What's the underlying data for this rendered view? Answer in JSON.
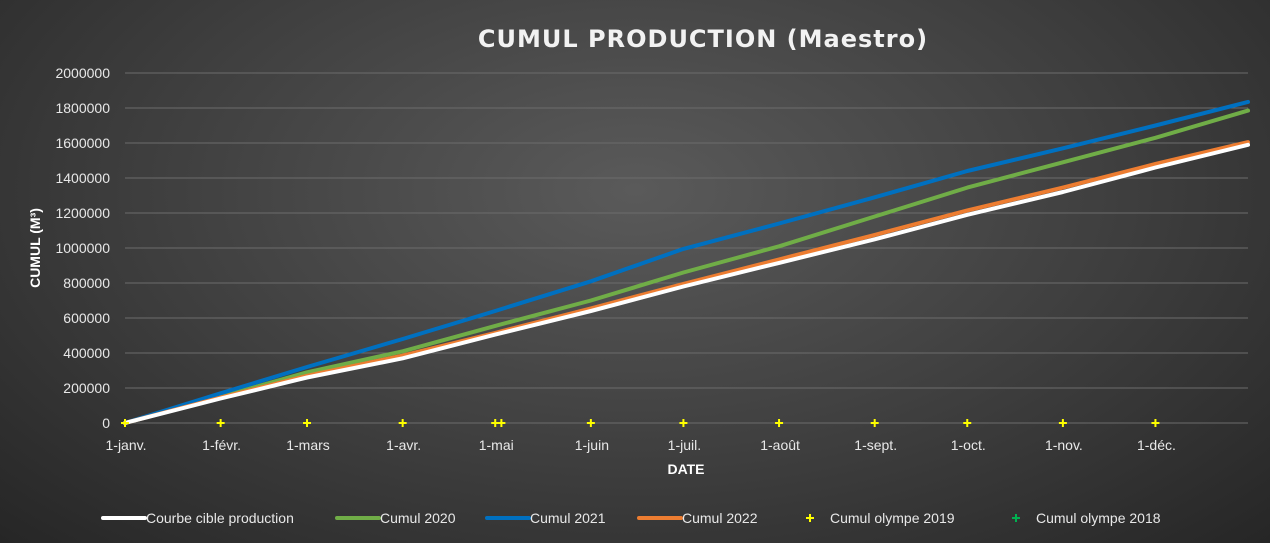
{
  "chart_data": {
    "type": "line",
    "title": "CUMUL PRODUCTION (Maestro)",
    "xlabel": "DATE",
    "ylabel": "CUMUL (M³)",
    "ylim": [
      0,
      2000000
    ],
    "yticks": [
      0,
      200000,
      400000,
      600000,
      800000,
      1000000,
      1200000,
      1400000,
      1600000,
      1800000,
      2000000
    ],
    "xlim": [
      "1-janv.",
      "31-déc."
    ],
    "xticks": [
      {
        "label": "1-janv.",
        "day": 0
      },
      {
        "label": "1-févr.",
        "day": 31
      },
      {
        "label": "1-mars",
        "day": 59
      },
      {
        "label": "1-avr.",
        "day": 90
      },
      {
        "label": "1-mai",
        "day": 120
      },
      {
        "label": "1-juin",
        "day": 151
      },
      {
        "label": "1-juil.",
        "day": 181
      },
      {
        "label": "1-août",
        "day": 212
      },
      {
        "label": "1-sept.",
        "day": 243
      },
      {
        "label": "1-oct.",
        "day": 273
      },
      {
        "label": "1-nov.",
        "day": 304
      },
      {
        "label": "1-déc.",
        "day": 334
      }
    ],
    "grid": true,
    "legend_position": "bottom",
    "series": [
      {
        "name": "Courbe cible production",
        "color": "#ffffff",
        "style": "line",
        "points": [
          [
            0,
            0
          ],
          [
            31,
            140000
          ],
          [
            59,
            260000
          ],
          [
            90,
            370000
          ],
          [
            120,
            505000
          ],
          [
            151,
            640000
          ],
          [
            181,
            780000
          ],
          [
            212,
            915000
          ],
          [
            243,
            1050000
          ],
          [
            273,
            1190000
          ],
          [
            304,
            1320000
          ],
          [
            334,
            1460000
          ],
          [
            364,
            1590000
          ]
        ]
      },
      {
        "name": "Cumul 2020",
        "color": "#70ad47",
        "style": "line",
        "points": [
          [
            0,
            0
          ],
          [
            31,
            150000
          ],
          [
            59,
            290000
          ],
          [
            90,
            410000
          ],
          [
            120,
            555000
          ],
          [
            151,
            700000
          ],
          [
            181,
            860000
          ],
          [
            212,
            1010000
          ],
          [
            243,
            1180000
          ],
          [
            273,
            1345000
          ],
          [
            304,
            1490000
          ],
          [
            334,
            1630000
          ],
          [
            364,
            1785000
          ]
        ]
      },
      {
        "name": "Cumul 2021",
        "color": "#0070c0",
        "style": "line",
        "points": [
          [
            0,
            0
          ],
          [
            31,
            170000
          ],
          [
            59,
            320000
          ],
          [
            90,
            480000
          ],
          [
            120,
            640000
          ],
          [
            151,
            810000
          ],
          [
            181,
            995000
          ],
          [
            212,
            1140000
          ],
          [
            243,
            1290000
          ],
          [
            273,
            1440000
          ],
          [
            304,
            1570000
          ],
          [
            334,
            1700000
          ],
          [
            364,
            1835000
          ]
        ]
      },
      {
        "name": "Cumul 2022",
        "color": "#ed7d31",
        "style": "line",
        "points": [
          [
            0,
            0
          ],
          [
            31,
            145000
          ],
          [
            59,
            270000
          ],
          [
            90,
            385000
          ],
          [
            120,
            515000
          ],
          [
            151,
            655000
          ],
          [
            181,
            795000
          ],
          [
            212,
            935000
          ],
          [
            243,
            1075000
          ],
          [
            273,
            1215000
          ],
          [
            304,
            1345000
          ],
          [
            334,
            1480000
          ],
          [
            364,
            1605000
          ]
        ]
      },
      {
        "name": "Cumul olympe 2019",
        "color": "#ffff00",
        "style": "marker",
        "points": [
          [
            0,
            0
          ],
          [
            31,
            0
          ],
          [
            59,
            0
          ],
          [
            90,
            0
          ],
          [
            120,
            0
          ],
          [
            122,
            0
          ],
          [
            151,
            0
          ],
          [
            181,
            0
          ],
          [
            212,
            0
          ],
          [
            243,
            0
          ],
          [
            273,
            0
          ],
          [
            304,
            0
          ],
          [
            334,
            0
          ]
        ]
      },
      {
        "name": "Cumul olympe 2018",
        "color": "#00b050",
        "style": "marker",
        "points": []
      }
    ]
  }
}
